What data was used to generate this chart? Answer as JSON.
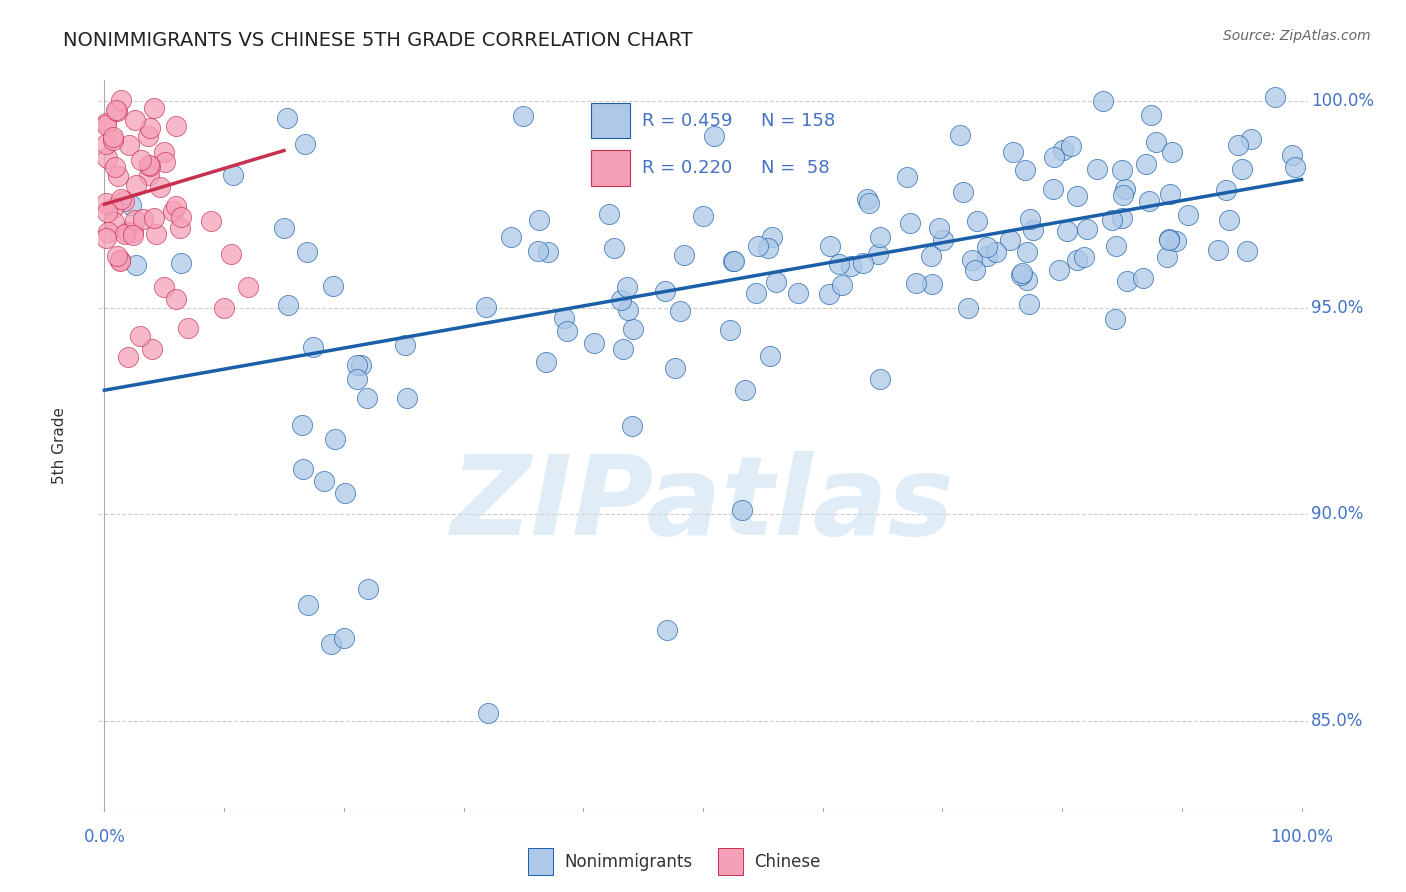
{
  "title": "NONIMMIGRANTS VS CHINESE 5TH GRADE CORRELATION CHART",
  "source": "Source: ZipAtlas.com",
  "ylabel": "5th Grade",
  "legend_blue_r": "R = 0.459",
  "legend_blue_n": "N = 158",
  "legend_pink_r": "R = 0.220",
  "legend_pink_n": "N =  58",
  "blue_color": "#adc8e8",
  "pink_color": "#f5a0b8",
  "trend_blue": "#1a5fa8",
  "trend_pink": "#c83050",
  "watermark_color": "#c8ddf0",
  "grid_color": "#cccccc",
  "ymin": 0.828,
  "ymax": 1.005,
  "xmin": -0.005,
  "xmax": 1.005,
  "yticks": [
    0.85,
    0.9,
    0.95,
    1.0
  ],
  "ytick_labels": [
    "85.0%",
    "90.0%",
    "95.0%",
    "100.0%"
  ],
  "blue_trend_x": [
    0.0,
    1.0
  ],
  "blue_trend_y": [
    0.93,
    0.981
  ],
  "pink_trend_x": [
    0.0,
    0.15
  ],
  "pink_trend_y": [
    0.975,
    0.988
  ]
}
